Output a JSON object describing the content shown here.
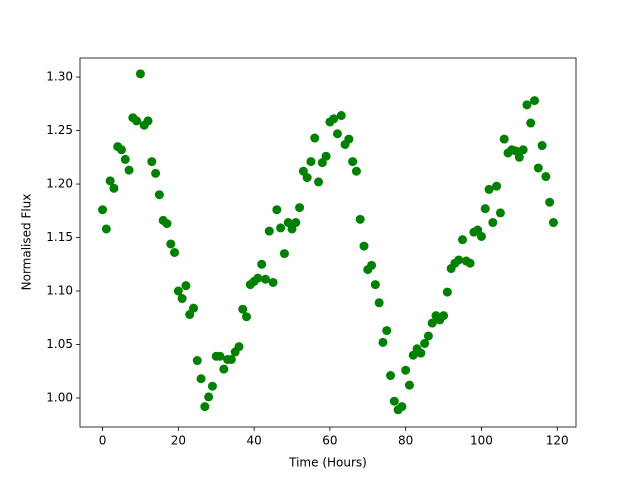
{
  "chart_data": {
    "type": "scatter",
    "xlabel": "Time (Hours)",
    "ylabel": "Normalised Flux",
    "color": "#008000",
    "xlim": [
      -5.95,
      124.95
    ],
    "ylim": [
      0.9729,
      1.3178
    ],
    "xticks": [
      0,
      20,
      40,
      60,
      80,
      100,
      120
    ],
    "yticks": [
      {
        "value": 1.0,
        "label": "1.00"
      },
      1.05,
      {
        "value": 1.1,
        "label": "1.10"
      },
      1.15,
      {
        "value": 1.2,
        "label": "1.20"
      },
      1.25,
      {
        "value": 1.3,
        "label": "1.30"
      }
    ],
    "x": [
      0,
      1,
      2,
      3,
      4,
      5,
      6,
      7,
      8,
      9,
      10,
      11,
      12,
      13,
      14,
      15,
      16,
      17,
      18,
      19,
      20,
      21,
      22,
      23,
      24,
      25,
      26,
      27,
      28,
      29,
      30,
      31,
      32,
      33,
      34,
      35,
      36,
      37,
      38,
      39,
      40,
      41,
      42,
      43,
      44,
      45,
      46,
      47,
      48,
      49,
      50,
      51,
      52,
      53,
      54,
      55,
      56,
      57,
      58,
      59,
      60,
      61,
      62,
      63,
      64,
      65,
      66,
      67,
      68,
      69,
      70,
      71,
      72,
      73,
      74,
      75,
      76,
      77,
      78,
      79,
      80,
      81,
      82,
      83,
      84,
      85,
      86,
      87,
      88,
      89,
      90,
      91,
      92,
      93,
      94,
      95,
      96,
      97,
      98,
      99,
      100,
      101,
      102,
      103,
      104,
      105,
      106,
      107,
      108,
      109,
      110,
      111,
      112,
      113,
      114,
      115,
      116,
      117,
      118,
      119
    ],
    "values": [
      1.176,
      1.158,
      1.203,
      1.196,
      1.235,
      1.232,
      1.223,
      1.213,
      1.262,
      1.259,
      1.303,
      1.255,
      1.259,
      1.221,
      1.21,
      1.19,
      1.166,
      1.163,
      1.144,
      1.136,
      1.1,
      1.093,
      1.105,
      1.078,
      1.084,
      1.035,
      1.018,
      0.992,
      1.001,
      1.011,
      1.039,
      1.039,
      1.027,
      1.036,
      1.036,
      1.043,
      1.048,
      1.083,
      1.076,
      1.106,
      1.109,
      1.112,
      1.125,
      1.111,
      1.156,
      1.108,
      1.176,
      1.159,
      1.135,
      1.164,
      1.158,
      1.164,
      1.178,
      1.212,
      1.206,
      1.221,
      1.243,
      1.202,
      1.22,
      1.226,
      1.258,
      1.261,
      1.247,
      1.264,
      1.237,
      1.242,
      1.221,
      1.212,
      1.167,
      1.142,
      1.12,
      1.124,
      1.106,
      1.089,
      1.052,
      1.063,
      1.021,
      0.997,
      0.989,
      0.992,
      1.026,
      1.012,
      1.04,
      1.046,
      1.042,
      1.051,
      1.058,
      1.07,
      1.077,
      1.073,
      1.077,
      1.099,
      1.121,
      1.126,
      1.129,
      1.148,
      1.128,
      1.126,
      1.155,
      1.157,
      1.151,
      1.177,
      1.195,
      1.164,
      1.198,
      1.173,
      1.242,
      1.229,
      1.232,
      1.231,
      1.225,
      1.232,
      1.274,
      1.257,
      1.278,
      1.215,
      1.236,
      1.207,
      1.183,
      1.164
    ]
  }
}
